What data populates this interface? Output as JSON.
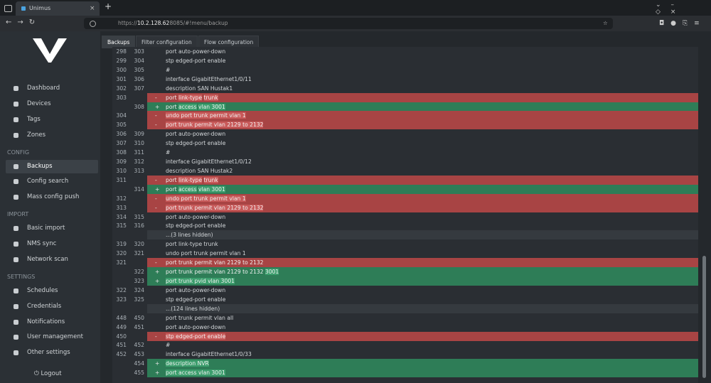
{
  "browser": {
    "tab_title": "Unimus",
    "url": {
      "scheme": "https://",
      "host": "10.2.128.62",
      "path": ":8085/#!menu/backup"
    }
  },
  "sidebar": {
    "entries": [
      {
        "label": "Dashboard"
      },
      {
        "label": "Devices"
      },
      {
        "label": "Tags"
      },
      {
        "label": "Zones"
      },
      {
        "heading": "CONFIG"
      },
      {
        "label": "Backups",
        "active": true
      },
      {
        "label": "Config search"
      },
      {
        "label": "Mass config push"
      },
      {
        "heading": "IMPORT"
      },
      {
        "label": "Basic import"
      },
      {
        "label": "NMS sync"
      },
      {
        "label": "Network scan"
      },
      {
        "heading": "SETTINGS"
      },
      {
        "label": "Schedules"
      },
      {
        "label": "Credentials"
      },
      {
        "label": "Notifications"
      },
      {
        "label": "User management"
      },
      {
        "label": "Other settings"
      }
    ],
    "logout": "Logout"
  },
  "tabs": [
    {
      "label": "Backups",
      "active": true
    },
    {
      "label": "Filter configuration"
    },
    {
      "label": "Flow configuration"
    }
  ],
  "diff": {
    "rows": [
      {
        "old": "298",
        "new": "303",
        "text": "port auto-power-down"
      },
      {
        "old": "299",
        "new": "304",
        "text": "stp edged-port enable"
      },
      {
        "old": "300",
        "new": "305",
        "text": "#"
      },
      {
        "old": "301",
        "new": "306",
        "text": "interface GigabitEthernet1/0/11"
      },
      {
        "old": "302",
        "new": "307",
        "text": "description SAN Hustak1"
      },
      {
        "old": "303",
        "new": null,
        "sign": "-",
        "kind": "del",
        "parts": [
          {
            "text": "port "
          },
          {
            "text": "link-type",
            "mark": true
          },
          {
            "text": " "
          },
          {
            "text": "trunk",
            "mark": true
          }
        ]
      },
      {
        "old": null,
        "new": "308",
        "sign": "+",
        "kind": "add",
        "parts": [
          {
            "text": "port "
          },
          {
            "text": "access",
            "mark": true
          },
          {
            "text": " "
          },
          {
            "text": "vlan 3001",
            "mark": true
          }
        ]
      },
      {
        "old": "304",
        "new": null,
        "sign": "-",
        "kind": "del",
        "parts": [
          {
            "text": "undo port trunk permit vlan 1",
            "mark": true
          }
        ]
      },
      {
        "old": "305",
        "new": null,
        "sign": "-",
        "kind": "del",
        "parts": [
          {
            "text": "port trunk permit vlan 2129 to 2132",
            "mark": true
          }
        ]
      },
      {
        "old": "306",
        "new": "309",
        "text": "port auto-power-down"
      },
      {
        "old": "307",
        "new": "310",
        "text": "stp edged-port enable"
      },
      {
        "old": "308",
        "new": "311",
        "text": "#"
      },
      {
        "old": "309",
        "new": "312",
        "text": "interface GigabitEthernet1/0/12"
      },
      {
        "old": "310",
        "new": "313",
        "text": "description SAN Hustak2"
      },
      {
        "old": "311",
        "new": null,
        "sign": "-",
        "kind": "del",
        "parts": [
          {
            "text": "port "
          },
          {
            "text": "link-type",
            "mark": true
          },
          {
            "text": " "
          },
          {
            "text": "trunk",
            "mark": true
          }
        ]
      },
      {
        "old": null,
        "new": "314",
        "sign": "+",
        "kind": "add",
        "parts": [
          {
            "text": "port "
          },
          {
            "text": "access",
            "mark": true
          },
          {
            "text": " "
          },
          {
            "text": "vlan 3001",
            "mark": true
          }
        ]
      },
      {
        "old": "312",
        "new": null,
        "sign": "-",
        "kind": "del",
        "parts": [
          {
            "text": "undo port trunk permit vlan 1",
            "mark": true
          }
        ]
      },
      {
        "old": "313",
        "new": null,
        "sign": "-",
        "kind": "del",
        "parts": [
          {
            "text": "port trunk permit vlan 2129 to 2132",
            "mark": true
          }
        ]
      },
      {
        "old": "314",
        "new": "315",
        "text": "port auto-power-down"
      },
      {
        "old": "315",
        "new": "316",
        "text": "stp edged-port enable"
      },
      {
        "kind": "hidden",
        "text": "...(3 lines hidden)"
      },
      {
        "old": "319",
        "new": "320",
        "text": "port link-type trunk"
      },
      {
        "old": "320",
        "new": "321",
        "text": "undo port trunk permit vlan 1"
      },
      {
        "old": "321",
        "new": null,
        "sign": "-",
        "kind": "del",
        "text": "port trunk permit vlan 2129 to 2132"
      },
      {
        "old": null,
        "new": "322",
        "sign": "+",
        "kind": "add",
        "parts": [
          {
            "text": "port trunk permit vlan 2129 to 2132 "
          },
          {
            "text": "3001",
            "mark": true
          }
        ]
      },
      {
        "old": null,
        "new": "323",
        "sign": "+",
        "kind": "add",
        "parts": [
          {
            "text": "port trunk pvid vlan 3001",
            "mark": true
          }
        ]
      },
      {
        "old": "322",
        "new": "324",
        "text": "port auto-power-down"
      },
      {
        "old": "323",
        "new": "325",
        "text": "stp edged-port enable"
      },
      {
        "kind": "hidden",
        "text": "...(124 lines hidden)"
      },
      {
        "old": "448",
        "new": "450",
        "text": "port trunk permit vlan all"
      },
      {
        "old": "449",
        "new": "451",
        "text": "port auto-power-down"
      },
      {
        "old": "450",
        "new": null,
        "sign": "-",
        "kind": "del",
        "parts": [
          {
            "text": "stp edged-port enable",
            "mark": true
          }
        ]
      },
      {
        "old": "451",
        "new": "452",
        "text": "#"
      },
      {
        "old": "452",
        "new": "453",
        "text": "interface GigabitEthernet1/0/33"
      },
      {
        "old": null,
        "new": "454",
        "sign": "+",
        "kind": "add",
        "parts": [
          {
            "text": "description NVR",
            "mark": true
          }
        ]
      },
      {
        "old": null,
        "new": "455",
        "sign": "+",
        "kind": "add",
        "parts": [
          {
            "text": "port access vlan 3001",
            "mark": true
          }
        ]
      }
    ]
  }
}
